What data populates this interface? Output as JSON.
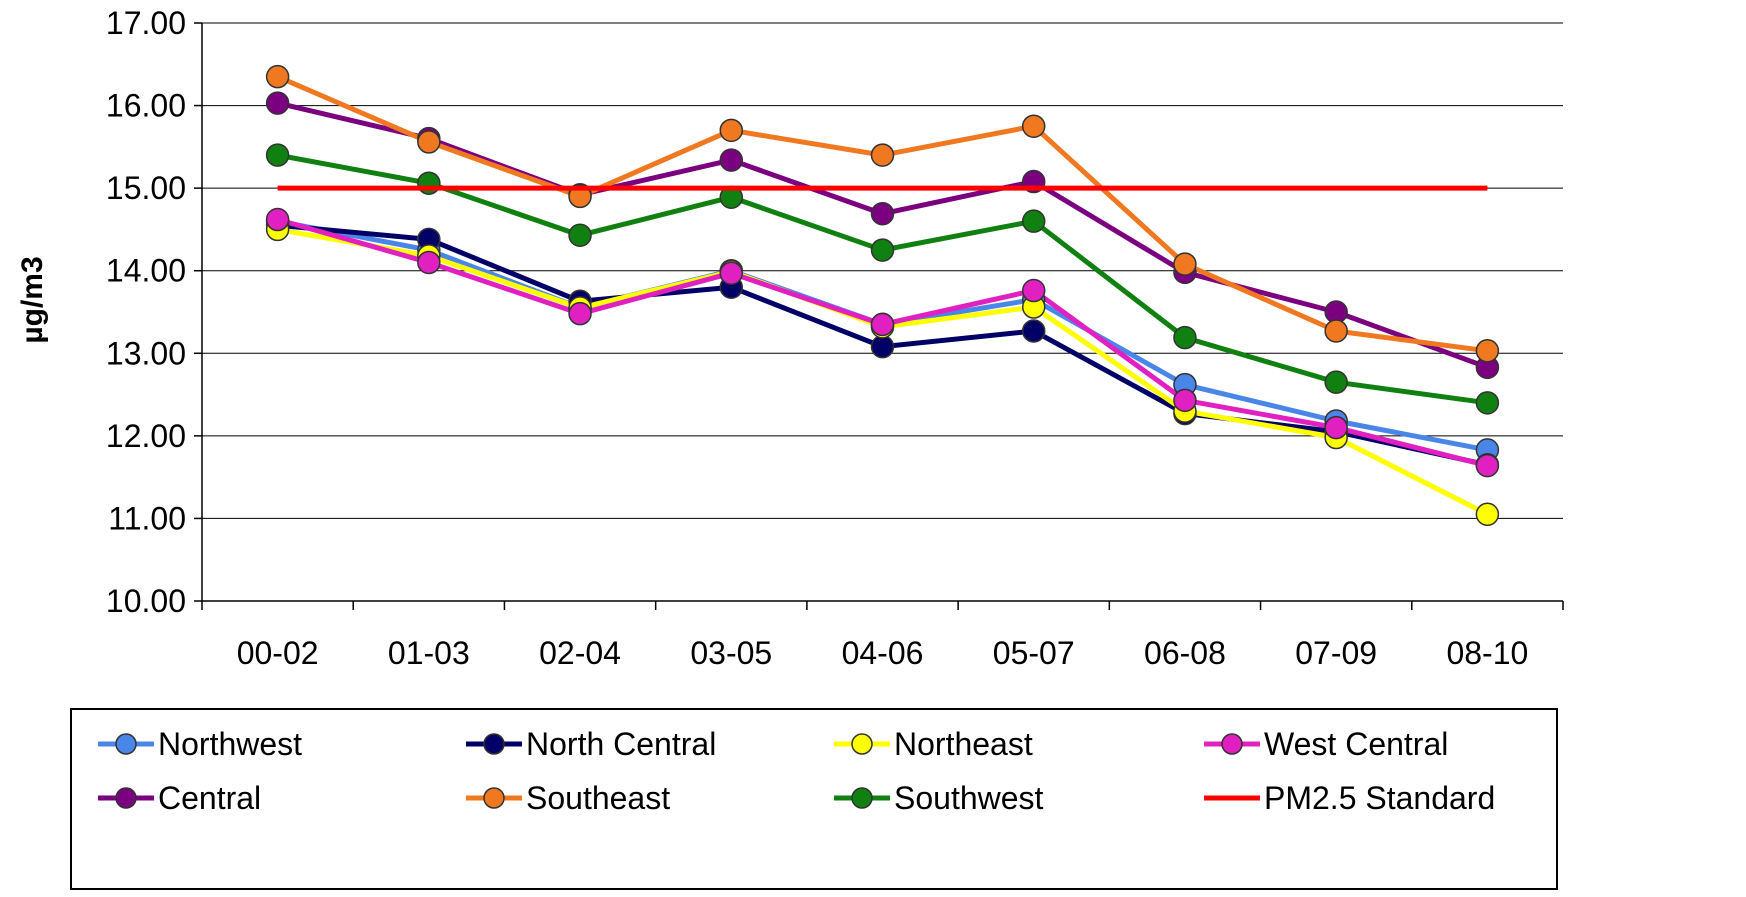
{
  "chart_data": {
    "type": "line",
    "title": "",
    "xlabel": "",
    "ylabel": "µg/m3",
    "ylim": [
      10,
      17
    ],
    "yticks": [
      "10.00",
      "11.00",
      "12.00",
      "13.00",
      "14.00",
      "15.00",
      "16.00",
      "17.00"
    ],
    "categories": [
      "00-02",
      "01-03",
      "02-04",
      "03-05",
      "04-06",
      "05-07",
      "06-08",
      "07-09",
      "08-10"
    ],
    "grid": true,
    "legend_position": "bottom",
    "series": [
      {
        "name": "Northwest",
        "color": "#4A86E8",
        "marker": true,
        "values": [
          14.6,
          14.25,
          13.55,
          14.0,
          13.35,
          13.65,
          12.62,
          12.18,
          11.83
        ]
      },
      {
        "name": "North Central",
        "color": "#000066",
        "marker": true,
        "values": [
          14.55,
          14.38,
          13.63,
          13.8,
          13.08,
          13.27,
          12.27,
          12.05,
          11.65
        ]
      },
      {
        "name": "Northeast",
        "color": "#FFFF00",
        "marker": true,
        "values": [
          14.5,
          14.18,
          13.55,
          13.99,
          13.32,
          13.56,
          12.3,
          11.98,
          11.05
        ]
      },
      {
        "name": "West Central",
        "color": "#E020C0",
        "marker": true,
        "values": [
          14.62,
          14.1,
          13.48,
          13.97,
          13.35,
          13.76,
          12.43,
          12.1,
          11.64
        ]
      },
      {
        "name": "Central",
        "color": "#7A0080",
        "marker": true,
        "values": [
          16.03,
          15.6,
          14.92,
          15.34,
          14.69,
          15.08,
          13.98,
          13.5,
          12.83
        ]
      },
      {
        "name": "Southeast",
        "color": "#F07820",
        "marker": true,
        "values": [
          16.35,
          15.56,
          14.9,
          15.7,
          15.4,
          15.75,
          14.08,
          13.27,
          13.03
        ]
      },
      {
        "name": "Southwest",
        "color": "#108010",
        "marker": true,
        "values": [
          15.4,
          15.06,
          14.43,
          14.89,
          14.25,
          14.6,
          13.19,
          12.65,
          12.4
        ]
      },
      {
        "name": "PM2.5 Standard",
        "color": "#FF0000",
        "marker": false,
        "values": [
          15,
          15,
          15,
          15,
          15,
          15,
          15,
          15,
          15
        ]
      }
    ]
  }
}
